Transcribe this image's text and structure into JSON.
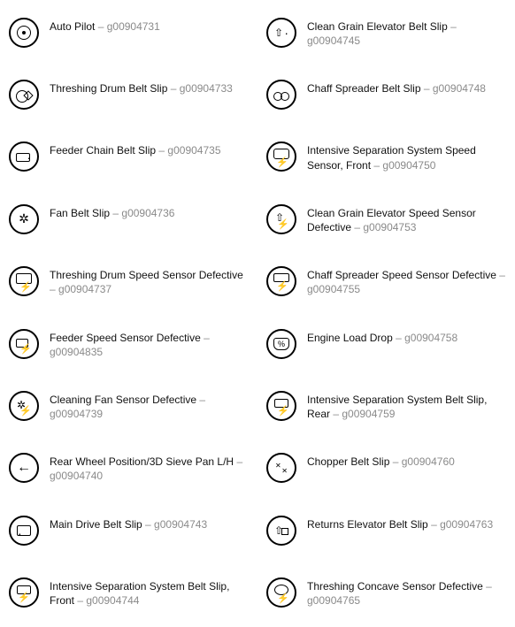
{
  "items": [
    {
      "label": "Auto Pilot",
      "code": "g00904731",
      "icon": "target"
    },
    {
      "label": "Clean Grain Elevator Belt Slip",
      "code": "g00904745",
      "icon": "grain"
    },
    {
      "label": "Threshing Drum Belt Slip",
      "code": "g00904733",
      "icon": "drum"
    },
    {
      "label": "Chaff Spreader Belt Slip",
      "code": "g00904748",
      "icon": "chaff"
    },
    {
      "label": "Feeder Chain Belt Slip",
      "code": "g00904735",
      "icon": "feeder"
    },
    {
      "label": "Intensive Separation System Speed Sensor, Front",
      "code": "g00904750",
      "icon": "iss-speed"
    },
    {
      "label": "Fan Belt Slip",
      "code": "g00904736",
      "icon": "fan"
    },
    {
      "label": "Clean Grain Elevator Speed Sensor Defective",
      "code": "g00904753",
      "icon": "grain-def"
    },
    {
      "label": "Threshing Drum Speed Sensor Defective",
      "code": "g00904737",
      "icon": "drum-sensor"
    },
    {
      "label": "Chaff Spreader Speed Sensor Defective",
      "code": "g00904755",
      "icon": "chaff-def"
    },
    {
      "label": "Feeder Speed Sensor Defective",
      "code": "g00904835",
      "icon": "feeder-sensor"
    },
    {
      "label": "Engine Load Drop",
      "code": "g00904758",
      "icon": "load"
    },
    {
      "label": "Cleaning Fan Sensor Defective",
      "code": "g00904739",
      "icon": "fan-sensor"
    },
    {
      "label": "Intensive Separation System Belt Slip, Rear",
      "code": "g00904759",
      "icon": "iss-rear"
    },
    {
      "label": "Rear Wheel Position/3D Sieve Pan L/H",
      "code": "g00904740",
      "icon": "arrow"
    },
    {
      "label": "Chopper Belt Slip",
      "code": "g00904760",
      "icon": "chopper"
    },
    {
      "label": "Main Drive Belt Slip",
      "code": "g00904743",
      "icon": "main"
    },
    {
      "label": "Returns Elevator Belt Slip",
      "code": "g00904763",
      "icon": "returns"
    },
    {
      "label": "Intensive Separation System Belt Slip, Front",
      "code": "g00904744",
      "icon": "iss-front"
    },
    {
      "label": "Threshing Concave Sensor Defective",
      "code": "g00904765",
      "icon": "concave"
    }
  ],
  "separator": " – "
}
